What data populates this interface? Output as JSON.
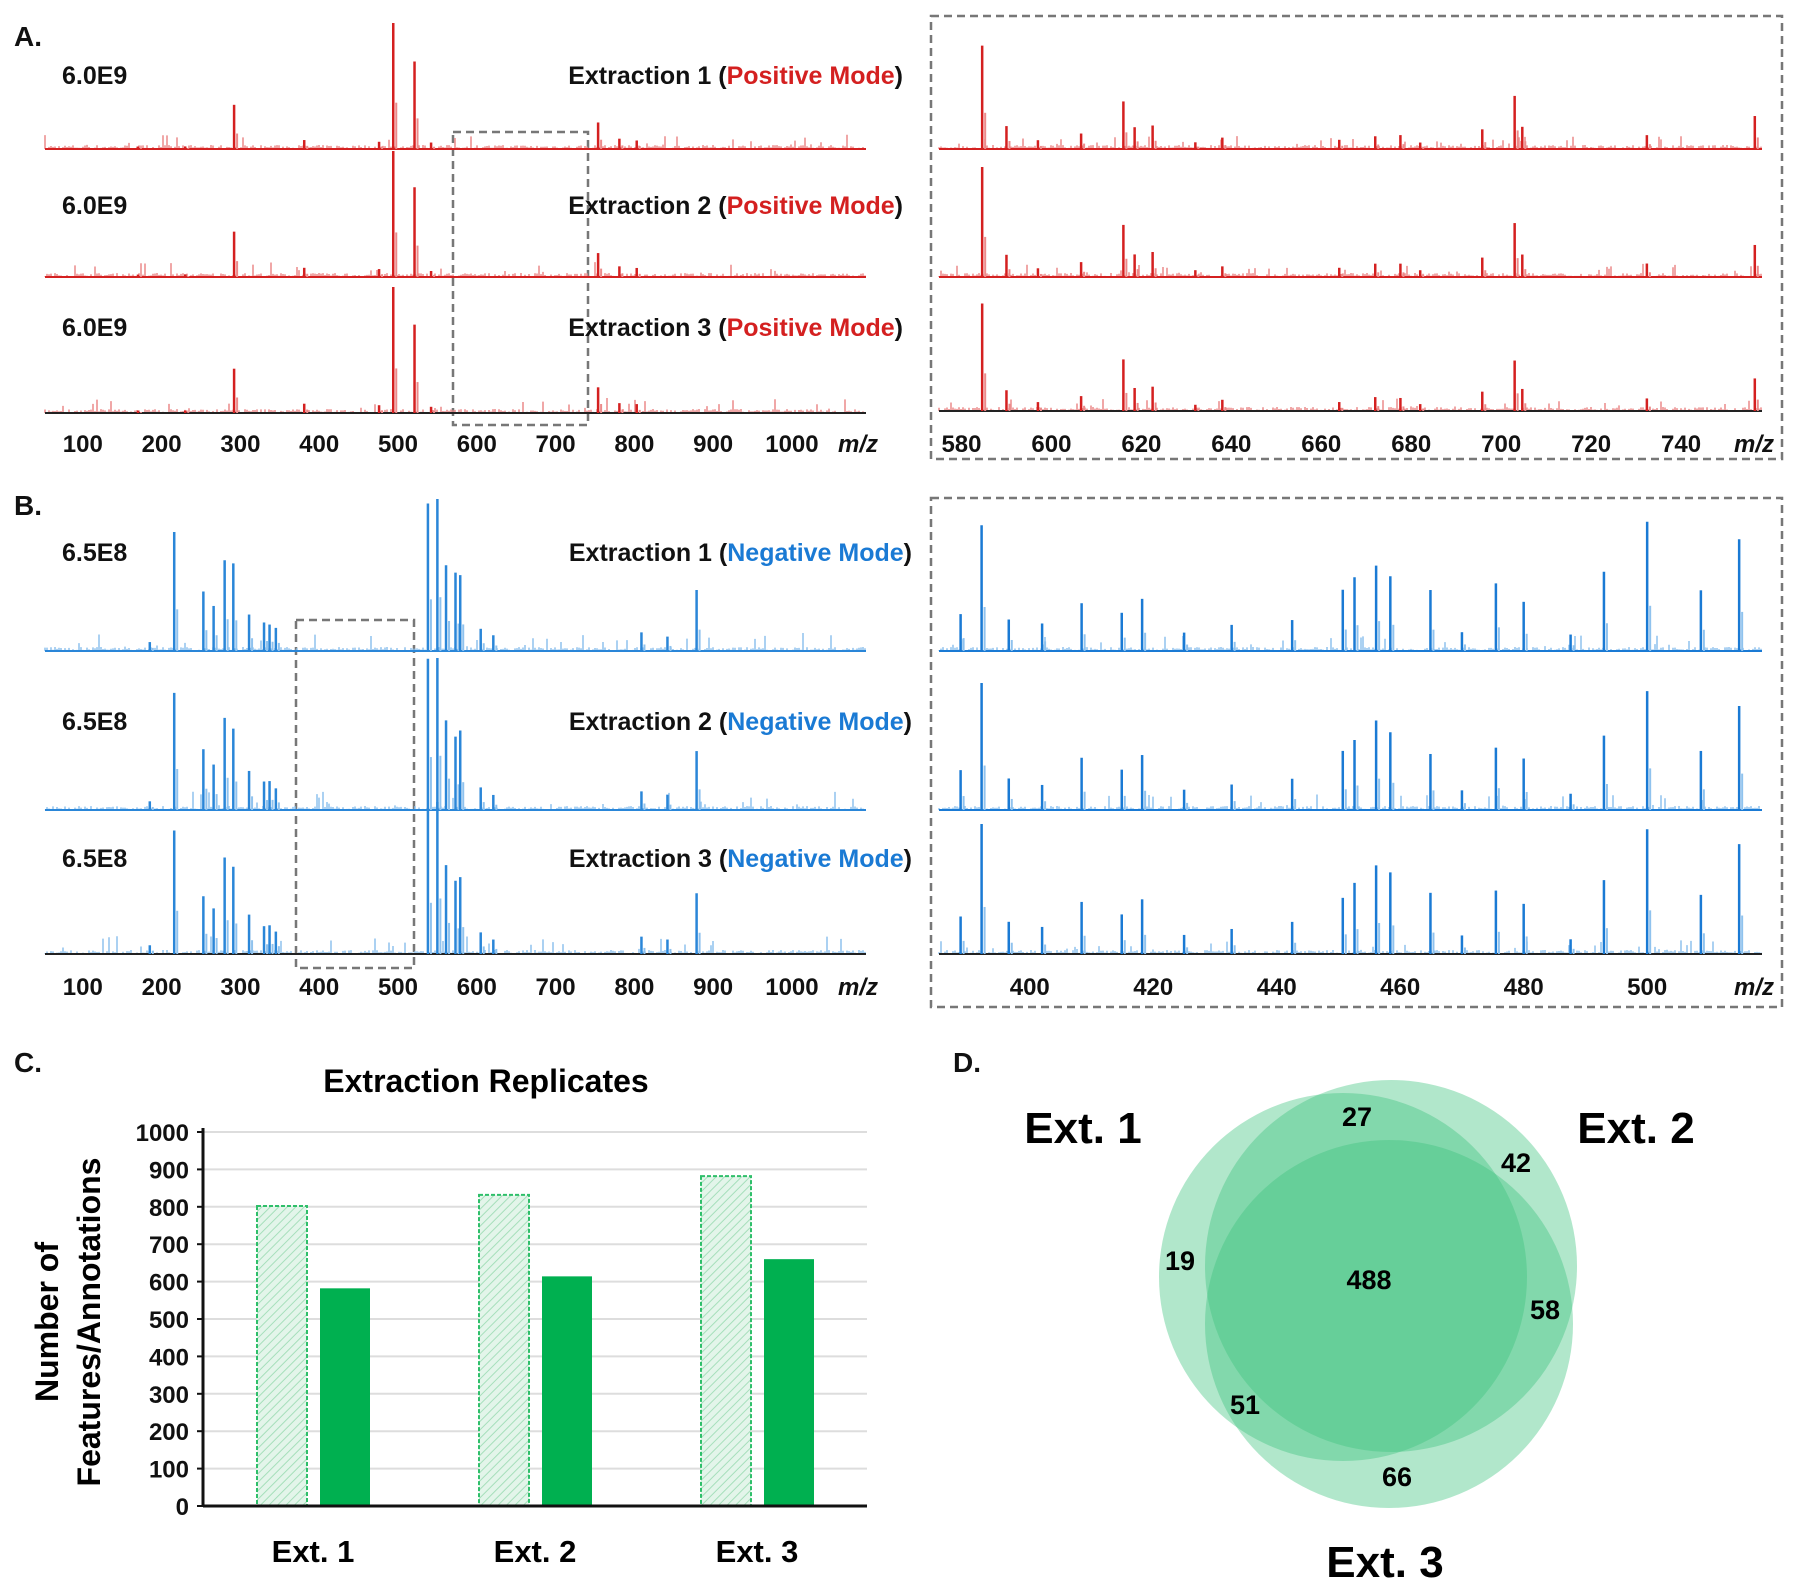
{
  "panel_labels": {
    "a": "A.",
    "b": "B.",
    "c": "C.",
    "d": "D."
  },
  "mz_label": "m/z",
  "positive": {
    "mode_label": "Positive Mode",
    "color": "#d42020",
    "scale_label": "6.0E9",
    "rows": [
      {
        "prefix": "Extraction 1 (",
        "suffix": ")"
      },
      {
        "prefix": "Extraction 2 (",
        "suffix": ")"
      },
      {
        "prefix": "Extraction 3 (",
        "suffix": ")"
      }
    ]
  },
  "negative": {
    "mode_label": "Negative Mode",
    "color": "#1a7ad4",
    "scale_label": "6.5E8",
    "rows": [
      {
        "prefix": "Extraction 1 (",
        "suffix": ")"
      },
      {
        "prefix": "Extraction 2 (",
        "suffix": ")"
      },
      {
        "prefix": "Extraction 3 (",
        "suffix": ")"
      }
    ]
  },
  "chart_data": [
    {
      "type": "line",
      "name": "positive-full",
      "xlabel": "m/z",
      "xlim": [
        52,
        1094
      ],
      "xticks": [
        "100",
        "200",
        "300",
        "400",
        "500",
        "600",
        "700",
        "800",
        "900",
        "1000"
      ],
      "zoom_region": [
        575,
        757
      ],
      "peaks": [
        [
          292,
          0.35
        ],
        [
          381,
          0.07
        ],
        [
          476,
          0.06
        ],
        [
          494,
          1.0
        ],
        [
          521,
          0.68
        ],
        [
          542,
          0.05
        ],
        [
          754,
          0.2
        ],
        [
          781,
          0.08
        ],
        [
          803,
          0.07
        ],
        [
          170,
          0.02
        ],
        [
          230,
          0.02
        ]
      ]
    },
    {
      "type": "line",
      "name": "positive-zoom",
      "xlabel": "m/z",
      "xlim": [
        575,
        758
      ],
      "xticks": [
        "580",
        "600",
        "620",
        "640",
        "660",
        "680",
        "700",
        "720",
        "740"
      ],
      "peaks": [
        [
          584.6,
          1.0
        ],
        [
          590,
          0.2
        ],
        [
          597,
          0.08
        ],
        [
          606.6,
          0.14
        ],
        [
          616,
          0.45
        ],
        [
          618.5,
          0.2
        ],
        [
          622.5,
          0.22
        ],
        [
          632,
          0.06
        ],
        [
          638,
          0.1
        ],
        [
          664,
          0.08
        ],
        [
          672,
          0.12
        ],
        [
          677.6,
          0.12
        ],
        [
          682,
          0.06
        ],
        [
          695.8,
          0.18
        ],
        [
          703,
          0.48
        ],
        [
          704.7,
          0.2
        ],
        [
          732.4,
          0.12
        ],
        [
          756.4,
          0.3
        ]
      ]
    },
    {
      "type": "line",
      "name": "negative-full",
      "xlabel": "m/z",
      "xlim": [
        52,
        1094
      ],
      "xticks": [
        "100",
        "200",
        "300",
        "400",
        "500",
        "600",
        "700",
        "800",
        "900",
        "1000"
      ],
      "zoom_region": [
        385,
        519
      ],
      "peaks": [
        [
          185,
          0.06
        ],
        [
          216,
          0.79
        ],
        [
          253,
          0.38
        ],
        [
          266,
          0.3
        ],
        [
          280,
          0.6
        ],
        [
          291,
          0.55
        ],
        [
          311,
          0.25
        ],
        [
          330,
          0.18
        ],
        [
          337,
          0.18
        ],
        [
          345,
          0.15
        ],
        [
          538,
          1.0
        ],
        [
          550,
          1.0
        ],
        [
          561,
          0.6
        ],
        [
          573,
          0.5
        ],
        [
          579,
          0.5
        ],
        [
          605,
          0.15
        ],
        [
          621,
          0.1
        ],
        [
          809,
          0.12
        ],
        [
          842,
          0.1
        ],
        [
          879,
          0.4
        ]
      ]
    },
    {
      "type": "line",
      "name": "negative-zoom",
      "xlabel": "m/z",
      "xlim": [
        385.3,
        518.6
      ],
      "xticks": [
        "400",
        "420",
        "440",
        "460",
        "480",
        "500"
      ],
      "peaks": [
        [
          388.8,
          0.3
        ],
        [
          392.2,
          1.0
        ],
        [
          396.6,
          0.25
        ],
        [
          402,
          0.2
        ],
        [
          408.4,
          0.38
        ],
        [
          414.9,
          0.3
        ],
        [
          418.2,
          0.4
        ],
        [
          425,
          0.15
        ],
        [
          432.7,
          0.2
        ],
        [
          442.5,
          0.25
        ],
        [
          450.7,
          0.45
        ],
        [
          452.6,
          0.55
        ],
        [
          456.1,
          0.65
        ],
        [
          458.4,
          0.6
        ],
        [
          464.9,
          0.45
        ],
        [
          470,
          0.15
        ],
        [
          475.5,
          0.5
        ],
        [
          480,
          0.4
        ],
        [
          487.6,
          0.12
        ],
        [
          493,
          0.6
        ],
        [
          500,
          0.95
        ],
        [
          508.7,
          0.45
        ],
        [
          514.9,
          0.85
        ]
      ]
    },
    {
      "type": "bar",
      "name": "extraction-replicates",
      "title": "Extraction Replicates",
      "ylabel_line1": "Number of",
      "ylabel_line2": "Features/Annotations",
      "ylim": [
        0,
        1000
      ],
      "yticks": [
        "0",
        "100",
        "200",
        "300",
        "400",
        "500",
        "600",
        "700",
        "800",
        "900",
        "1000"
      ],
      "categories": [
        "Ext. 1",
        "Ext. 2",
        "Ext. 3"
      ],
      "series": [
        {
          "name": "Features",
          "style": "hatched",
          "color": "#c9ecd5",
          "values": [
            802,
            832,
            882
          ]
        },
        {
          "name": "Annotations",
          "style": "solid",
          "color": "#00b050",
          "values": [
            582,
            614,
            660
          ]
        }
      ],
      "grid": true
    },
    {
      "type": "venn",
      "name": "extraction-overlap",
      "sets": [
        "Ext. 1",
        "Ext. 2",
        "Ext. 3"
      ],
      "color": "#3cc47c",
      "regions": {
        "1_only": "19",
        "2_only": "42",
        "3_only": "66",
        "1_2": "27",
        "2_3": "58",
        "1_3": "51",
        "1_2_3": "488"
      }
    }
  ]
}
